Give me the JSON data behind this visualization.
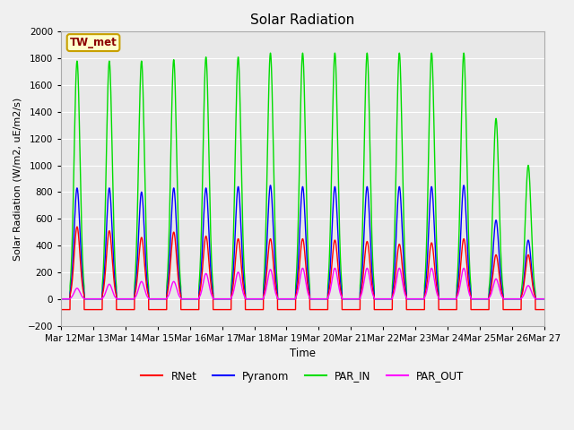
{
  "title": "Solar Radiation",
  "ylabel": "Solar Radiation (W/m2, uE/m2/s)",
  "xlabel": "Time",
  "ylim": [
    -200,
    2000
  ],
  "yticks": [
    -200,
    0,
    200,
    400,
    600,
    800,
    1000,
    1200,
    1400,
    1600,
    1800,
    2000
  ],
  "x_tick_labels": [
    "Mar 12",
    "Mar 13",
    "Mar 14",
    "Mar 15",
    "Mar 16",
    "Mar 17",
    "Mar 18",
    "Mar 19",
    "Mar 20",
    "Mar 21",
    "Mar 22",
    "Mar 23",
    "Mar 24",
    "Mar 25",
    "Mar 26",
    "Mar 27"
  ],
  "colors": {
    "RNet": "#ff0000",
    "Pyranom": "#0000ff",
    "PAR_IN": "#00dd00",
    "PAR_OUT": "#ff00ff"
  },
  "legend_label": "TW_met",
  "fig_facecolor": "#f0f0f0",
  "ax_facecolor": "#e8e8e8",
  "par_in_peaks": [
    1780,
    1780,
    1780,
    1790,
    1810,
    1810,
    1840,
    1840,
    1840,
    1840,
    1840,
    1840,
    1840,
    1350,
    1000
  ],
  "pyranom_peaks": [
    830,
    830,
    800,
    830,
    830,
    840,
    850,
    840,
    840,
    840,
    840,
    840,
    850,
    590,
    440
  ],
  "rnet_peaks": [
    540,
    510,
    460,
    500,
    470,
    450,
    450,
    450,
    440,
    430,
    410,
    420,
    450,
    330,
    330
  ],
  "par_out_peaks": [
    80,
    110,
    130,
    130,
    190,
    200,
    220,
    230,
    230,
    230,
    230,
    230,
    230,
    150,
    100
  ],
  "rnet_night": -80,
  "n_days": 15,
  "pts_per_day": 480
}
